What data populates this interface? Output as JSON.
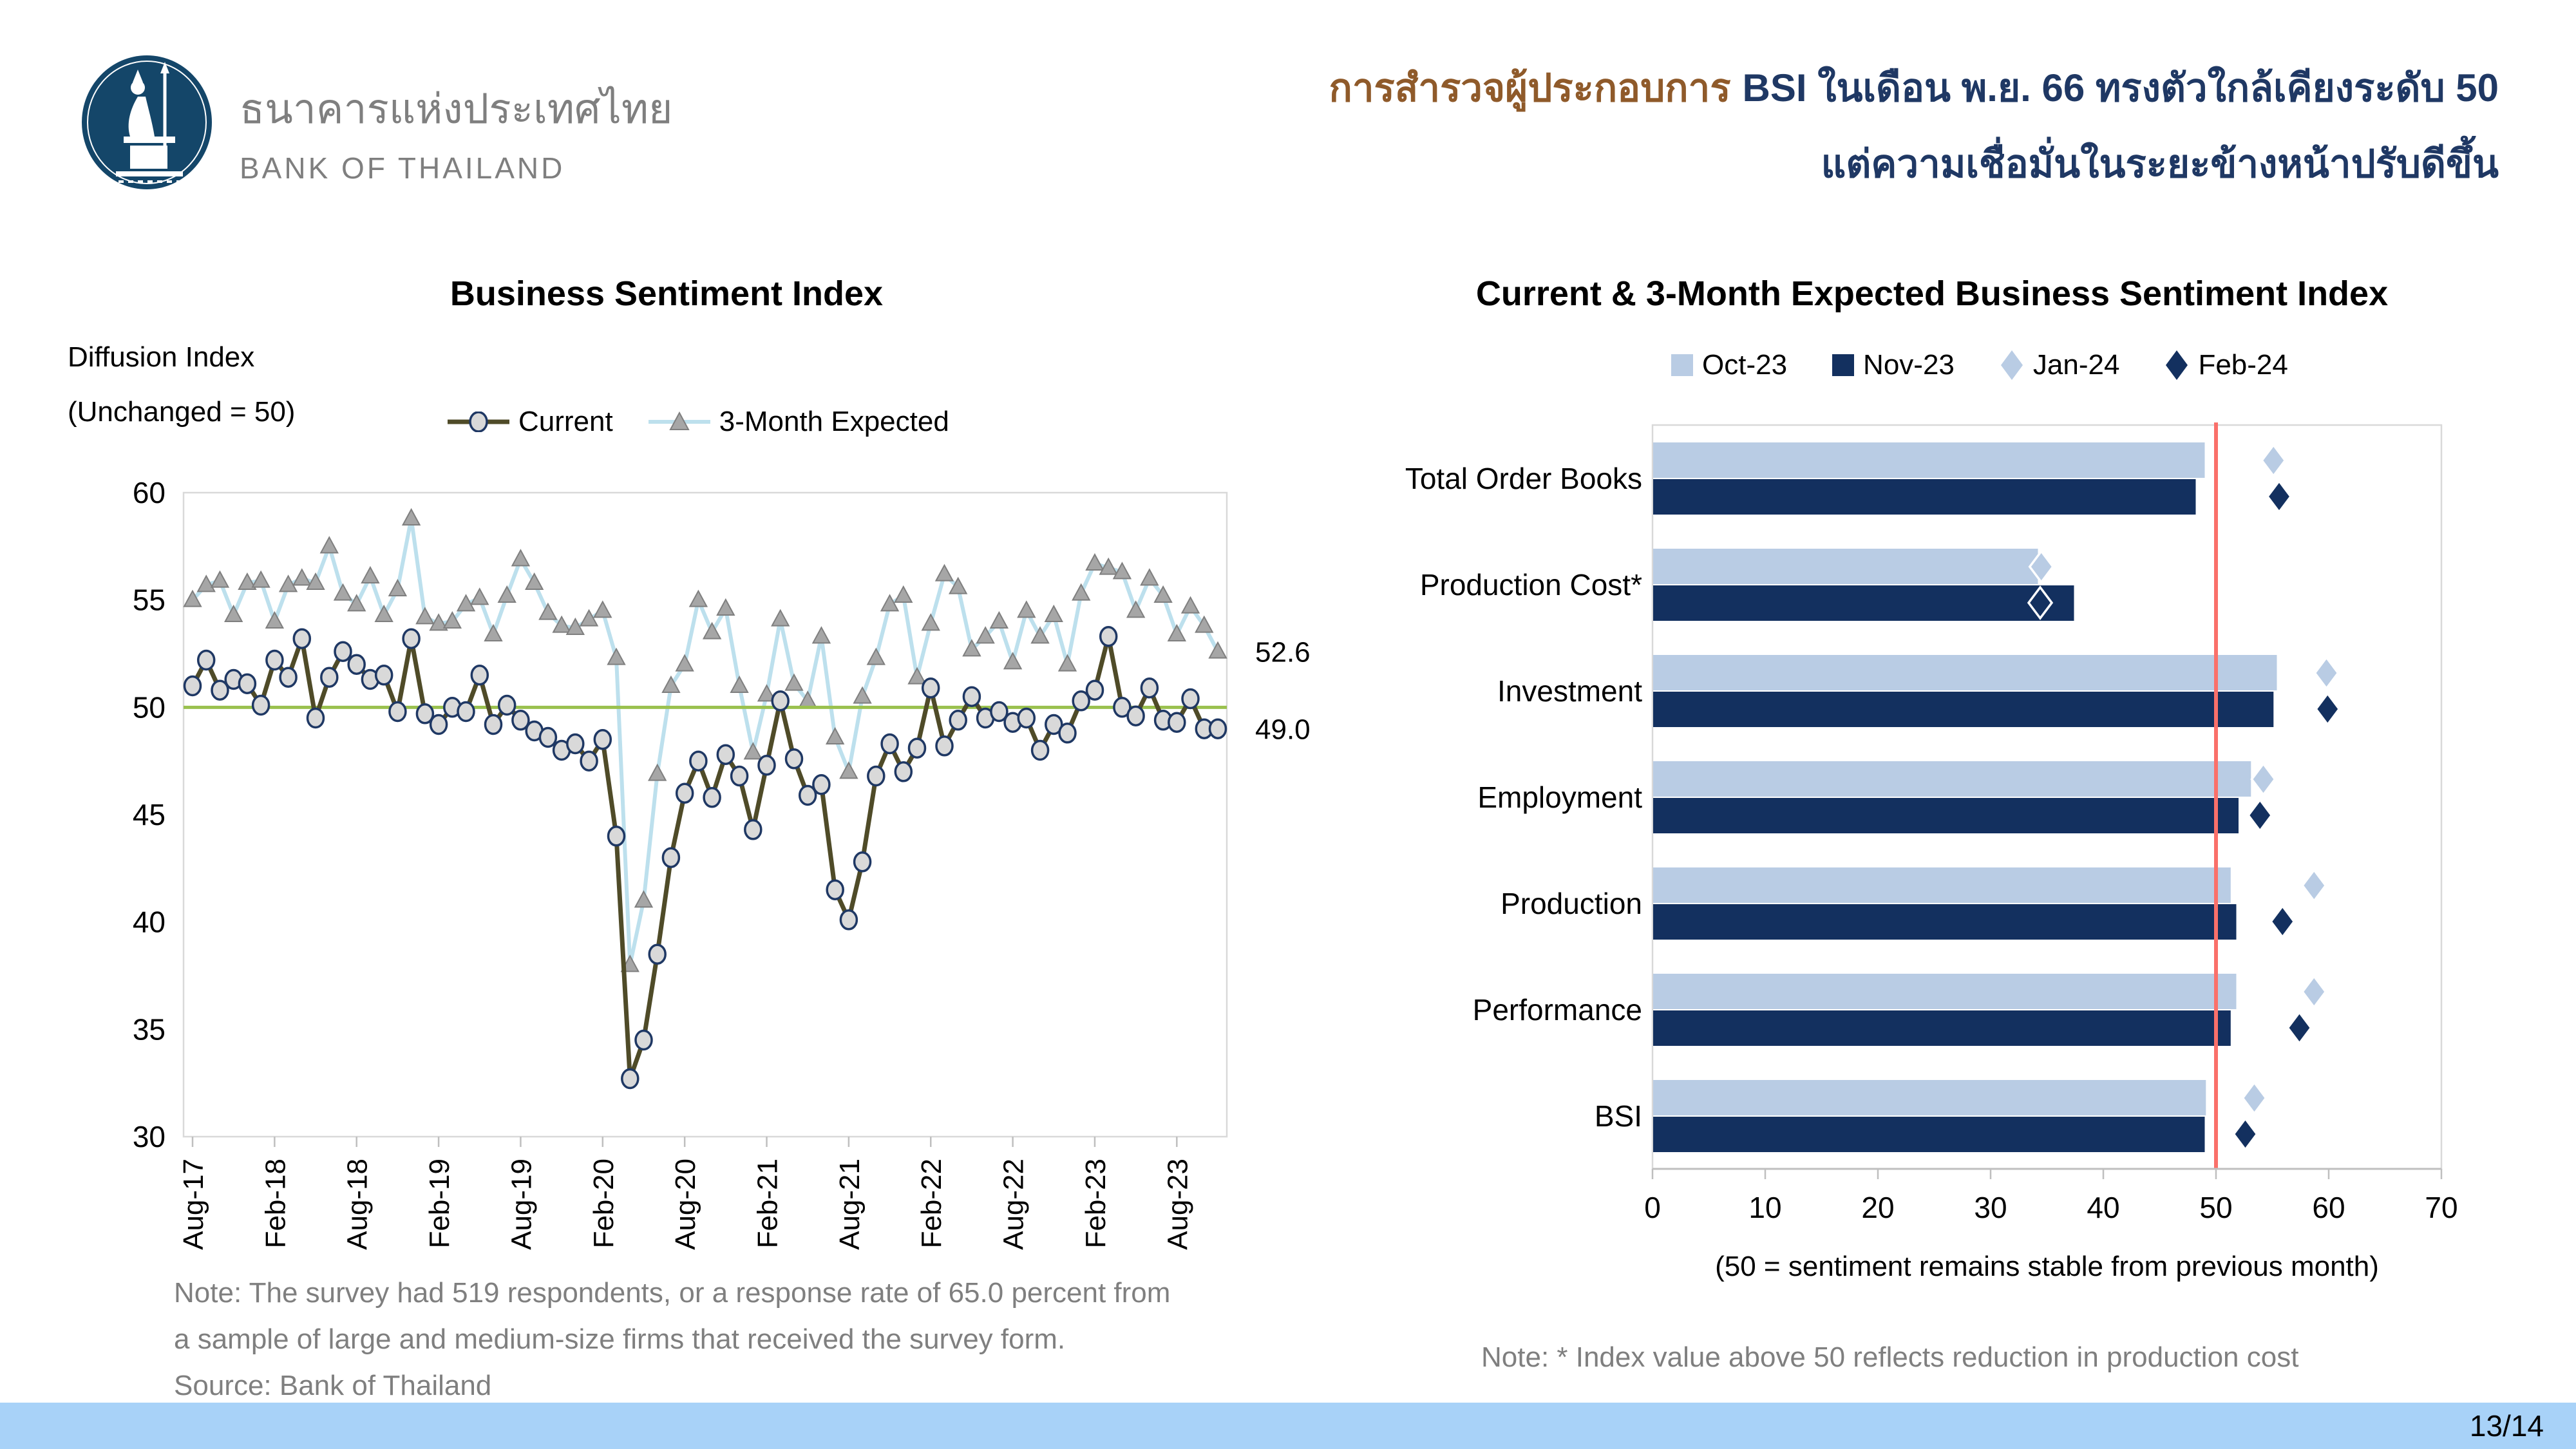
{
  "header": {
    "logo": {
      "thai_name": "ธนาคารแห่งประเทศไทย",
      "english_name": "BANK OF THAILAND"
    },
    "title": {
      "line1_brown": "การสำรวจผู้ประกอบการ",
      "line1_navy": "BSI ในเดือน พ.ย. 66 ทรงตัวใกล้เคียงระดับ 50",
      "line2": "แต่ความเชื่อมั่นในระยะข้างหน้าปรับดีขึ้น"
    }
  },
  "left_chart": {
    "title": "Business Sentiment Index",
    "unit_line1": "Diffusion Index",
    "unit_line2": "(Unchanged = 50)",
    "legend": [
      "Current",
      "3-Month Expected"
    ],
    "end_labels": {
      "expected": "52.6",
      "current": "49.0"
    },
    "notes": [
      "Note: The survey had 519 respondents, or a response rate of 65.0 percent from",
      "a sample of large and medium-size firms that received the survey form.",
      "Source: Bank of Thailand"
    ]
  },
  "right_chart": {
    "title": "Current & 3-Month Expected Business Sentiment Index",
    "legend": [
      "Oct-23",
      "Nov-23",
      "Jan-24",
      "Feb-24"
    ],
    "caption": "(50 = sentiment remains stable from previous month)",
    "note": "Note: * Index value above 50 reflects reduction in production cost"
  },
  "footer": {
    "page": "13/14"
  },
  "colors": {
    "light_blue": "#B9CCE4",
    "navy": "#13305F",
    "current_line": "#4F4B28",
    "current_marker_fill": "#D9D9D9",
    "current_marker_stroke": "#1F3864",
    "expected_line": "#BDE0ED",
    "expected_marker": "#A6A6A6",
    "expected_marker_stroke": "#7F7F7F",
    "green_line": "#9AC14E",
    "red_line": "#FA706A",
    "title_brown": "#8F5A2A",
    "title_navy": "#1F3864",
    "note_gray": "#7F7F7F",
    "footer_bar": "#A8D2F8",
    "axis_gray": "#BFBFBF",
    "border_gray": "#D9D9D9",
    "logo_blue": "#144669"
  },
  "chart_data": [
    {
      "type": "line",
      "title": "Business Sentiment Index",
      "ylabel": "Diffusion Index (Unchanged = 50)",
      "ylim": [
        30,
        60
      ],
      "yticks": [
        30,
        35,
        40,
        45,
        50,
        55,
        60
      ],
      "reference_line": 50,
      "x_tick_indices": [
        0,
        6,
        12,
        18,
        24,
        30,
        36,
        42,
        48,
        54,
        60,
        66,
        72
      ],
      "x_tick_labels": [
        "Aug-17",
        "Feb-18",
        "Aug-18",
        "Feb-19",
        "Aug-19",
        "Feb-20",
        "Aug-20",
        "Feb-21",
        "Aug-21",
        "Feb-22",
        "Aug-22",
        "Feb-23",
        "Aug-23"
      ],
      "x": [
        "Aug-17",
        "Sep-17",
        "Oct-17",
        "Nov-17",
        "Dec-17",
        "Jan-18",
        "Feb-18",
        "Mar-18",
        "Apr-18",
        "May-18",
        "Jun-18",
        "Jul-18",
        "Aug-18",
        "Sep-18",
        "Oct-18",
        "Nov-18",
        "Dec-18",
        "Jan-19",
        "Feb-19",
        "Mar-19",
        "Apr-19",
        "May-19",
        "Jun-19",
        "Jul-19",
        "Aug-19",
        "Sep-19",
        "Oct-19",
        "Nov-19",
        "Dec-19",
        "Jan-20",
        "Feb-20",
        "Mar-20",
        "Apr-20",
        "May-20",
        "Jun-20",
        "Jul-20",
        "Aug-20",
        "Sep-20",
        "Oct-20",
        "Nov-20",
        "Dec-20",
        "Jan-21",
        "Feb-21",
        "Mar-21",
        "Apr-21",
        "May-21",
        "Jun-21",
        "Jul-21",
        "Aug-21",
        "Sep-21",
        "Oct-21",
        "Nov-21",
        "Dec-21",
        "Jan-22",
        "Feb-22",
        "Mar-22",
        "Apr-22",
        "May-22",
        "Jun-22",
        "Jul-22",
        "Aug-22",
        "Sep-22",
        "Oct-22",
        "Nov-22",
        "Dec-22",
        "Jan-23",
        "Feb-23",
        "Mar-23",
        "Apr-23",
        "May-23",
        "Jun-23",
        "Jul-23",
        "Aug-23",
        "Sep-23",
        "Oct-23",
        "Nov-23"
      ],
      "series": [
        {
          "name": "Current",
          "color_key": "current_line",
          "values": [
            51.0,
            52.2,
            50.8,
            51.3,
            51.1,
            50.1,
            52.2,
            51.4,
            53.2,
            49.5,
            51.4,
            52.6,
            52.0,
            51.3,
            51.5,
            49.8,
            53.2,
            49.7,
            49.2,
            50.0,
            49.8,
            51.5,
            49.2,
            50.1,
            49.4,
            48.9,
            48.6,
            48.0,
            48.3,
            47.5,
            48.5,
            44.0,
            32.7,
            34.5,
            38.5,
            43.0,
            46.0,
            47.5,
            45.8,
            47.8,
            46.8,
            44.3,
            47.3,
            50.3,
            47.6,
            45.9,
            46.4,
            41.5,
            40.1,
            42.8,
            46.8,
            48.3,
            47.0,
            48.1,
            50.9,
            48.2,
            49.4,
            50.5,
            49.5,
            49.8,
            49.3,
            49.5,
            48.0,
            49.2,
            48.8,
            50.3,
            50.8,
            53.3,
            50.0,
            49.6,
            50.9,
            49.4,
            49.3,
            50.4,
            49.0,
            49.0
          ]
        },
        {
          "name": "3-Month Expected",
          "color_key": "expected_line",
          "values": [
            55.0,
            55.7,
            55.9,
            54.3,
            55.8,
            55.9,
            54.0,
            55.7,
            56.0,
            55.8,
            57.5,
            55.3,
            54.8,
            56.1,
            54.3,
            55.5,
            58.8,
            54.2,
            53.9,
            54.0,
            54.8,
            55.1,
            53.4,
            55.2,
            56.9,
            55.8,
            54.4,
            53.8,
            53.7,
            54.1,
            54.5,
            52.3,
            38.0,
            41.0,
            46.9,
            51.0,
            52.0,
            55.0,
            53.5,
            54.6,
            51.0,
            47.9,
            50.6,
            54.1,
            51.1,
            50.3,
            53.3,
            48.6,
            47.0,
            50.5,
            52.3,
            54.8,
            55.2,
            51.4,
            53.9,
            56.2,
            55.6,
            52.7,
            53.3,
            54.0,
            52.1,
            54.5,
            53.3,
            54.3,
            52.0,
            55.3,
            56.7,
            56.5,
            56.3,
            54.5,
            56.0,
            55.2,
            53.4,
            54.7,
            53.8,
            52.6
          ]
        }
      ],
      "end_labels": [
        {
          "text": "52.6",
          "value": 52.6
        },
        {
          "text": "49.0",
          "value": 49.0
        }
      ],
      "legend_position": "top"
    },
    {
      "type": "bar",
      "orientation": "horizontal",
      "title": "Current & 3-Month Expected Business Sentiment Index",
      "categories": [
        "Total Order Books",
        "Production Cost*",
        "Investment",
        "Employment",
        "Production",
        "Performance",
        "BSI"
      ],
      "xlim": [
        0,
        70
      ],
      "xticks": [
        0,
        10,
        20,
        30,
        40,
        50,
        60,
        70
      ],
      "reference_line": 50,
      "series": [
        {
          "name": "Oct-23",
          "marker": "bar",
          "color_key": "light_blue",
          "values": [
            49.0,
            34.2,
            55.4,
            53.1,
            51.3,
            51.8,
            49.1
          ]
        },
        {
          "name": "Nov-23",
          "marker": "bar",
          "color_key": "navy",
          "values": [
            48.2,
            37.4,
            55.1,
            52.0,
            51.8,
            51.3,
            49.0
          ]
        },
        {
          "name": "Jan-24",
          "marker": "diamond",
          "color_key": "light_blue",
          "values": [
            55.1,
            34.5,
            59.8,
            54.2,
            58.7,
            58.7,
            53.4
          ]
        },
        {
          "name": "Feb-24",
          "marker": "diamond",
          "color_key": "navy",
          "values": [
            55.6,
            34.4,
            59.9,
            53.9,
            55.9,
            57.4,
            52.6
          ],
          "hollow_index": 1
        }
      ],
      "legend_position": "top",
      "caption": "(50 = sentiment remains stable from previous month)"
    }
  ]
}
